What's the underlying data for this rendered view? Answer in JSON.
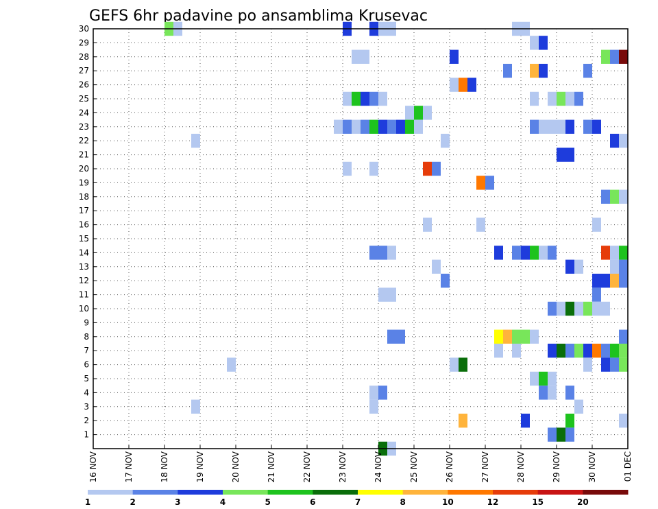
{
  "chart_data": {
    "type": "heatmap",
    "title": "GEFS 6hr padavine po ansamblima Krusevac",
    "xlabel": "",
    "ylabel": "",
    "x_ticks": [
      "16 NOV",
      "17 NOV",
      "18 NOV",
      "19 NOV",
      "20 NOV",
      "21 NOV",
      "22 NOV",
      "23 NOV",
      "24 NOV",
      "25 NOV",
      "26 NOV",
      "27 NOV",
      "28 NOV",
      "29 NOV",
      "30 NOV",
      "01 DEC"
    ],
    "y_ticks": [
      1,
      2,
      3,
      4,
      5,
      6,
      7,
      8,
      9,
      10,
      11,
      12,
      13,
      14,
      15,
      16,
      17,
      18,
      19,
      20,
      21,
      22,
      23,
      24,
      25,
      26,
      27,
      28,
      29,
      30
    ],
    "xlim_days": [
      16,
      31
    ],
    "ylim": [
      0,
      30
    ],
    "grid": true,
    "legend_position": "bottom",
    "color_levels": [
      {
        "label": "1",
        "color": "#b4c8f0"
      },
      {
        "label": "2",
        "color": "#5a82e6"
      },
      {
        "label": "3",
        "color": "#1e3cdc"
      },
      {
        "label": "4",
        "color": "#78e65a"
      },
      {
        "label": "5",
        "color": "#1ec31e"
      },
      {
        "label": "6",
        "color": "#0a6e0a"
      },
      {
        "label": "7",
        "color": "#ffff00"
      },
      {
        "label": "8",
        "color": "#ffb43c"
      },
      {
        "label": "10",
        "color": "#ff7800"
      },
      {
        "label": "12",
        "color": "#e63c0a"
      },
      {
        "label": "15",
        "color": "#c81414"
      },
      {
        "label": "20",
        "color": "#780a0a"
      }
    ],
    "cells": [
      {
        "member": 30,
        "day": 18.0,
        "level": 3
      },
      {
        "member": 30,
        "day": 18.25,
        "level": 0
      },
      {
        "member": 30,
        "day": 23.0,
        "level": 2
      },
      {
        "member": 30,
        "day": 23.75,
        "level": 2
      },
      {
        "member": 30,
        "day": 24.0,
        "level": 0
      },
      {
        "member": 30,
        "day": 24.25,
        "level": 0
      },
      {
        "member": 30,
        "day": 27.75,
        "level": 0
      },
      {
        "member": 30,
        "day": 28.0,
        "level": 0
      },
      {
        "member": 29,
        "day": 28.25,
        "level": 0
      },
      {
        "member": 29,
        "day": 28.5,
        "level": 2
      },
      {
        "member": 28,
        "day": 23.25,
        "level": 0
      },
      {
        "member": 28,
        "day": 23.5,
        "level": 0
      },
      {
        "member": 28,
        "day": 26.0,
        "level": 2
      },
      {
        "member": 28,
        "day": 30.25,
        "level": 3
      },
      {
        "member": 28,
        "day": 30.5,
        "level": 1
      },
      {
        "member": 28,
        "day": 30.75,
        "level": 11
      },
      {
        "member": 27,
        "day": 27.5,
        "level": 1
      },
      {
        "member": 27,
        "day": 28.25,
        "level": 7
      },
      {
        "member": 27,
        "day": 28.5,
        "level": 2
      },
      {
        "member": 27,
        "day": 29.75,
        "level": 1
      },
      {
        "member": 26,
        "day": 26.0,
        "level": 0
      },
      {
        "member": 26,
        "day": 26.25,
        "level": 8
      },
      {
        "member": 26,
        "day": 26.5,
        "level": 2
      },
      {
        "member": 25,
        "day": 23.0,
        "level": 0
      },
      {
        "member": 25,
        "day": 23.25,
        "level": 4
      },
      {
        "member": 25,
        "day": 23.5,
        "level": 2
      },
      {
        "member": 25,
        "day": 23.75,
        "level": 1
      },
      {
        "member": 25,
        "day": 24.0,
        "level": 0
      },
      {
        "member": 25,
        "day": 28.25,
        "level": 0
      },
      {
        "member": 25,
        "day": 28.75,
        "level": 0
      },
      {
        "member": 25,
        "day": 29.0,
        "level": 3
      },
      {
        "member": 25,
        "day": 29.25,
        "level": 0
      },
      {
        "member": 25,
        "day": 29.5,
        "level": 1
      },
      {
        "member": 24,
        "day": 24.75,
        "level": 0
      },
      {
        "member": 24,
        "day": 25.0,
        "level": 4
      },
      {
        "member": 24,
        "day": 25.25,
        "level": 0
      },
      {
        "member": 23,
        "day": 22.75,
        "level": 0
      },
      {
        "member": 23,
        "day": 23.0,
        "level": 1
      },
      {
        "member": 23,
        "day": 23.25,
        "level": 0
      },
      {
        "member": 23,
        "day": 23.5,
        "level": 1
      },
      {
        "member": 23,
        "day": 23.75,
        "level": 4
      },
      {
        "member": 23,
        "day": 24.0,
        "level": 2
      },
      {
        "member": 23,
        "day": 24.25,
        "level": 1
      },
      {
        "member": 23,
        "day": 24.5,
        "level": 2
      },
      {
        "member": 23,
        "day": 24.75,
        "level": 4
      },
      {
        "member": 23,
        "day": 25.0,
        "level": 0
      },
      {
        "member": 23,
        "day": 28.25,
        "level": 1
      },
      {
        "member": 23,
        "day": 28.5,
        "level": 0
      },
      {
        "member": 23,
        "day": 28.75,
        "level": 0
      },
      {
        "member": 23,
        "day": 29.0,
        "level": 0
      },
      {
        "member": 23,
        "day": 29.25,
        "level": 2
      },
      {
        "member": 23,
        "day": 29.75,
        "level": 1
      },
      {
        "member": 23,
        "day": 30.0,
        "level": 2
      },
      {
        "member": 22,
        "day": 18.75,
        "level": 0
      },
      {
        "member": 22,
        "day": 25.75,
        "level": 0
      },
      {
        "member": 22,
        "day": 30.5,
        "level": 2
      },
      {
        "member": 22,
        "day": 30.75,
        "level": 0
      },
      {
        "member": 21,
        "day": 29.0,
        "level": 2
      },
      {
        "member": 21,
        "day": 29.25,
        "level": 2
      },
      {
        "member": 20,
        "day": 23.0,
        "level": 0
      },
      {
        "member": 20,
        "day": 23.75,
        "level": 0
      },
      {
        "member": 20,
        "day": 25.25,
        "level": 9
      },
      {
        "member": 20,
        "day": 25.5,
        "level": 1
      },
      {
        "member": 19,
        "day": 26.75,
        "level": 8
      },
      {
        "member": 19,
        "day": 27.0,
        "level": 1
      },
      {
        "member": 18,
        "day": 30.25,
        "level": 1
      },
      {
        "member": 18,
        "day": 30.5,
        "level": 3
      },
      {
        "member": 18,
        "day": 30.75,
        "level": 0
      },
      {
        "member": 16,
        "day": 25.25,
        "level": 0
      },
      {
        "member": 16,
        "day": 26.75,
        "level": 0
      },
      {
        "member": 16,
        "day": 30.0,
        "level": 0
      },
      {
        "member": 14,
        "day": 23.75,
        "level": 1
      },
      {
        "member": 14,
        "day": 24.0,
        "level": 1
      },
      {
        "member": 14,
        "day": 24.25,
        "level": 0
      },
      {
        "member": 14,
        "day": 27.25,
        "level": 2
      },
      {
        "member": 14,
        "day": 27.75,
        "level": 1
      },
      {
        "member": 14,
        "day": 28.0,
        "level": 2
      },
      {
        "member": 14,
        "day": 28.25,
        "level": 4
      },
      {
        "member": 14,
        "day": 28.5,
        "level": 0
      },
      {
        "member": 14,
        "day": 28.75,
        "level": 1
      },
      {
        "member": 14,
        "day": 30.25,
        "level": 9
      },
      {
        "member": 14,
        "day": 30.5,
        "level": 0
      },
      {
        "member": 14,
        "day": 30.75,
        "level": 4
      },
      {
        "member": 13,
        "day": 25.5,
        "level": 0
      },
      {
        "member": 13,
        "day": 29.25,
        "level": 2
      },
      {
        "member": 13,
        "day": 29.5,
        "level": 0
      },
      {
        "member": 13,
        "day": 30.5,
        "level": 0
      },
      {
        "member": 13,
        "day": 30.75,
        "level": 1
      },
      {
        "member": 12,
        "day": 25.75,
        "level": 1
      },
      {
        "member": 12,
        "day": 30.0,
        "level": 2
      },
      {
        "member": 12,
        "day": 30.25,
        "level": 2
      },
      {
        "member": 12,
        "day": 30.5,
        "level": 7
      },
      {
        "member": 12,
        "day": 30.75,
        "level": 1
      },
      {
        "member": 11,
        "day": 24.0,
        "level": 0
      },
      {
        "member": 11,
        "day": 24.25,
        "level": 0
      },
      {
        "member": 11,
        "day": 30.0,
        "level": 1
      },
      {
        "member": 10,
        "day": 28.75,
        "level": 1
      },
      {
        "member": 10,
        "day": 29.0,
        "level": 0
      },
      {
        "member": 10,
        "day": 29.25,
        "level": 5
      },
      {
        "member": 10,
        "day": 29.5,
        "level": 0
      },
      {
        "member": 10,
        "day": 29.75,
        "level": 3
      },
      {
        "member": 10,
        "day": 30.0,
        "level": 0
      },
      {
        "member": 10,
        "day": 30.25,
        "level": 0
      },
      {
        "member": 8,
        "day": 24.25,
        "level": 1
      },
      {
        "member": 8,
        "day": 24.5,
        "level": 1
      },
      {
        "member": 8,
        "day": 27.25,
        "level": 6
      },
      {
        "member": 8,
        "day": 27.5,
        "level": 7
      },
      {
        "member": 8,
        "day": 27.75,
        "level": 3
      },
      {
        "member": 8,
        "day": 28.0,
        "level": 3
      },
      {
        "member": 8,
        "day": 28.25,
        "level": 0
      },
      {
        "member": 8,
        "day": 30.75,
        "level": 1
      },
      {
        "member": 7,
        "day": 27.25,
        "level": 0
      },
      {
        "member": 7,
        "day": 27.75,
        "level": 0
      },
      {
        "member": 7,
        "day": 28.75,
        "level": 2
      },
      {
        "member": 7,
        "day": 29.0,
        "level": 5
      },
      {
        "member": 7,
        "day": 29.25,
        "level": 1
      },
      {
        "member": 7,
        "day": 29.5,
        "level": 3
      },
      {
        "member": 7,
        "day": 29.75,
        "level": 2
      },
      {
        "member": 7,
        "day": 30.0,
        "level": 8
      },
      {
        "member": 7,
        "day": 30.25,
        "level": 1
      },
      {
        "member": 7,
        "day": 30.5,
        "level": 4
      },
      {
        "member": 7,
        "day": 30.75,
        "level": 3
      },
      {
        "member": 6,
        "day": 19.75,
        "level": 0
      },
      {
        "member": 6,
        "day": 26.0,
        "level": 0
      },
      {
        "member": 6,
        "day": 26.25,
        "level": 5
      },
      {
        "member": 6,
        "day": 29.75,
        "level": 0
      },
      {
        "member": 6,
        "day": 30.25,
        "level": 2
      },
      {
        "member": 6,
        "day": 30.5,
        "level": 1
      },
      {
        "member": 6,
        "day": 30.75,
        "level": 3
      },
      {
        "member": 5,
        "day": 28.25,
        "level": 0
      },
      {
        "member": 5,
        "day": 28.5,
        "level": 4
      },
      {
        "member": 5,
        "day": 28.75,
        "level": 0
      },
      {
        "member": 4,
        "day": 23.75,
        "level": 0
      },
      {
        "member": 4,
        "day": 24.0,
        "level": 1
      },
      {
        "member": 4,
        "day": 28.5,
        "level": 1
      },
      {
        "member": 4,
        "day": 28.75,
        "level": 0
      },
      {
        "member": 4,
        "day": 29.25,
        "level": 1
      },
      {
        "member": 3,
        "day": 18.75,
        "level": 0
      },
      {
        "member": 3,
        "day": 23.75,
        "level": 0
      },
      {
        "member": 3,
        "day": 29.5,
        "level": 0
      },
      {
        "member": 2,
        "day": 26.25,
        "level": 7
      },
      {
        "member": 2,
        "day": 28.0,
        "level": 2
      },
      {
        "member": 2,
        "day": 29.25,
        "level": 4
      },
      {
        "member": 2,
        "day": 30.75,
        "level": 0
      },
      {
        "member": 1,
        "day": 28.75,
        "level": 1
      },
      {
        "member": 1,
        "day": 29.0,
        "level": 5
      },
      {
        "member": 1,
        "day": 29.25,
        "level": 1
      },
      {
        "member": 0,
        "day": 24.0,
        "level": 5
      },
      {
        "member": 0,
        "day": 24.25,
        "level": 0
      }
    ]
  }
}
